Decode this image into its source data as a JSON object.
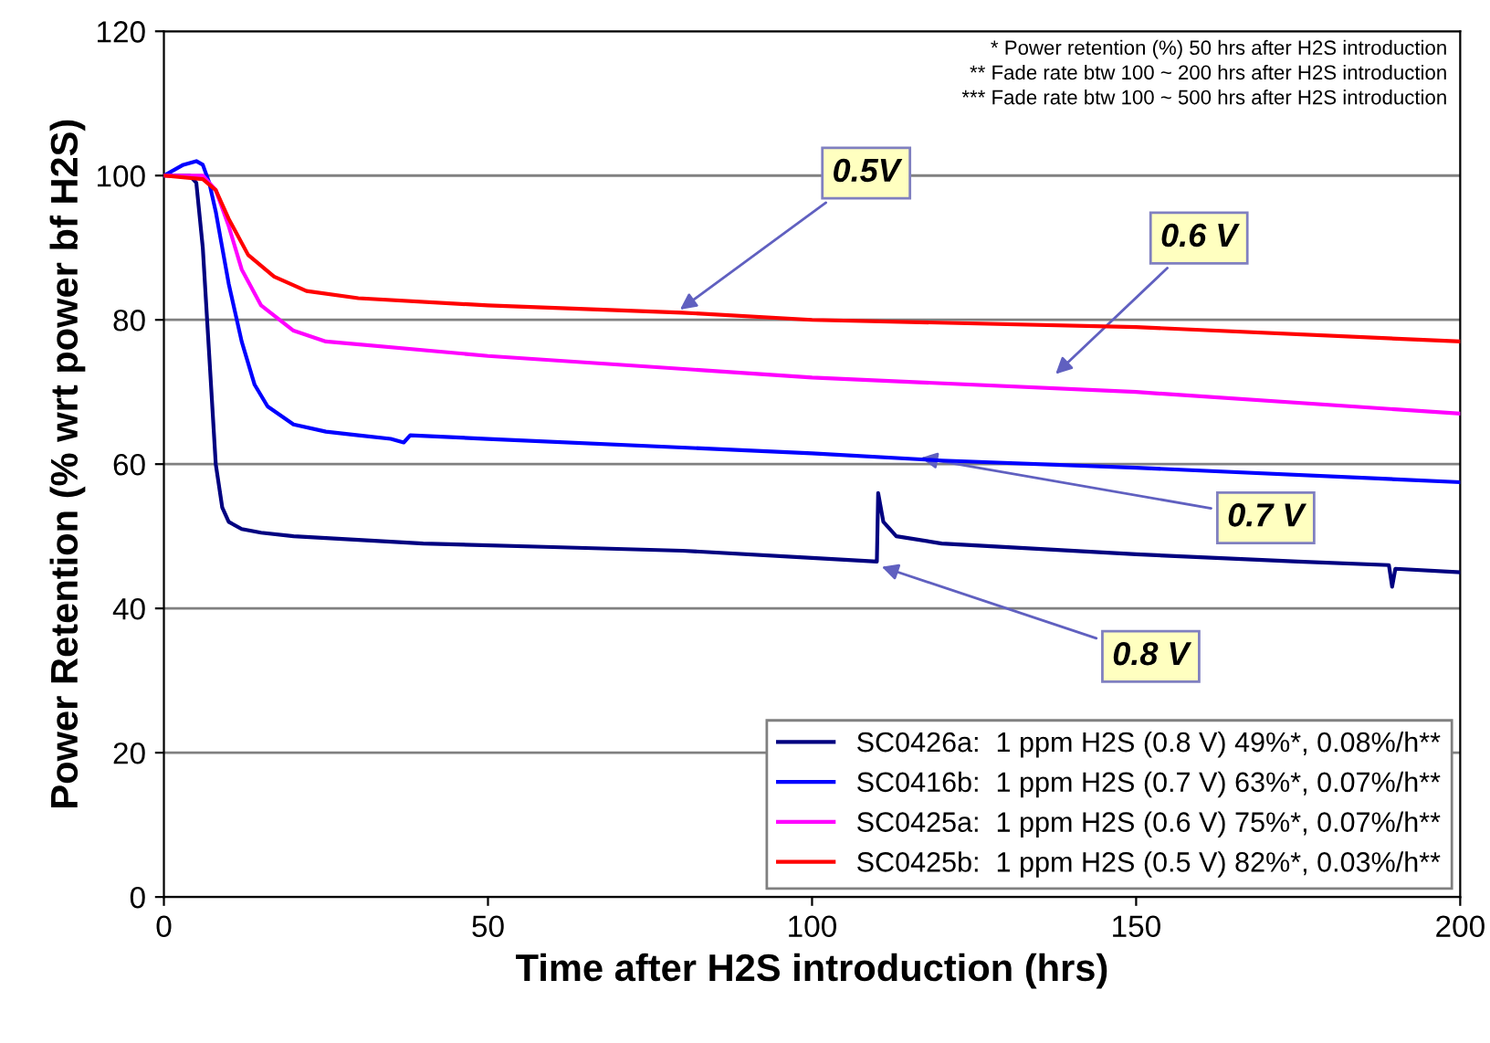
{
  "chart_data": {
    "type": "line",
    "xlabel": "Time after H2S introduction (hrs)",
    "ylabel": "Power Retention (% wrt power bf H2S)",
    "xlim": [
      0,
      200
    ],
    "xticks": [
      0,
      50,
      100,
      150,
      200
    ],
    "ylim": [
      0,
      120
    ],
    "yticks": [
      0,
      20,
      40,
      60,
      80,
      100,
      120
    ],
    "grid": "y",
    "legend": "bottom right",
    "marker": "none",
    "line_style": "solid",
    "series": [
      {
        "name": "SC0426a:  1 ppm H2S (0.8 V) 49%*, 0.08%/h**",
        "color": "#000080",
        "x": [
          0,
          4,
          5,
          6,
          7,
          8,
          9,
          10,
          12,
          15,
          20,
          40,
          60,
          80,
          100,
          110,
          110.2,
          111,
          113,
          120,
          150,
          175,
          189,
          189.5,
          190,
          200
        ],
        "values": [
          100,
          100,
          99,
          90,
          75,
          60,
          54,
          52,
          51,
          50.5,
          50,
          49,
          48.5,
          48,
          47,
          46.5,
          56,
          52,
          50,
          49,
          47.5,
          46.5,
          46,
          43,
          45.5,
          45
        ]
      },
      {
        "name": "SC0416b:  1 ppm H2S (0.7 V) 63%*, 0.07%/h**",
        "color": "#0000ff",
        "x": [
          0,
          3,
          5,
          6,
          7,
          8,
          10,
          12,
          14,
          16,
          20,
          25,
          30,
          35,
          37,
          38,
          50,
          100,
          120,
          150,
          200
        ],
        "values": [
          100,
          101.5,
          102,
          101.5,
          99,
          95,
          85,
          77,
          71,
          68,
          65.5,
          64.5,
          64,
          63.5,
          63,
          64,
          63.5,
          61.5,
          60.5,
          59.5,
          57.5
        ]
      },
      {
        "name": "SC0425a:  1 ppm H2S (0.6 V) 75%*, 0.07%/h**",
        "color": "#ff00ff",
        "x": [
          0,
          6,
          8,
          10,
          12,
          15,
          20,
          25,
          50,
          100,
          150,
          200
        ],
        "values": [
          100,
          100,
          98,
          93,
          87,
          82,
          78.5,
          77,
          75,
          72,
          70,
          67
        ]
      },
      {
        "name": "SC0425b:  1 ppm H2S (0.5 V) 82%*, 0.03%/h**",
        "color": "#ff0000",
        "x": [
          0,
          6,
          8,
          10,
          13,
          17,
          22,
          30,
          50,
          80,
          100,
          150,
          200
        ],
        "values": [
          100,
          99.5,
          98,
          94,
          89,
          86,
          84,
          83,
          82,
          81,
          80,
          79,
          77
        ]
      }
    ],
    "annotations": [
      "* Power retention (%) 50 hrs after H2S introduction\n** Fade rate btw 100 ~ 200 hrs after H2S introduction\n*** Fade rate btw 100 ~ 500 hrs after H2S introduction",
      {
        "text": "0.5V",
        "x": 79,
        "y": 81
      },
      {
        "text": "0.6 V",
        "x": 137,
        "y": 72
      },
      {
        "text": "0.7 V",
        "x": 116,
        "y": 61
      },
      {
        "text": "0.8 V",
        "x": 110,
        "y": 46
      }
    ]
  }
}
